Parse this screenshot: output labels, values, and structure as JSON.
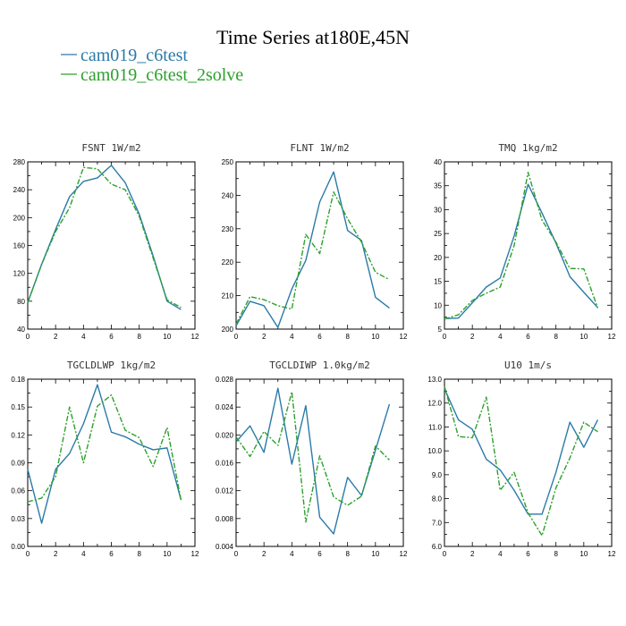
{
  "colors": {
    "series1": "#2a7aa8",
    "series2": "#2ca02c",
    "axis": "#000000"
  },
  "chart_data": {
    "title": "Time Series at180E,45N",
    "legend": {
      "placement": "top-left",
      "entries": [
        "cam019_c6test",
        "cam019_c6test_2solve"
      ]
    },
    "panels": [
      {
        "type": "line",
        "title": "FSNT   1W/m2",
        "x": [
          0,
          1,
          2,
          3,
          4,
          5,
          6,
          7,
          8,
          9,
          10,
          11
        ],
        "xlim": [
          0,
          12
        ],
        "xticks": [
          "0",
          "2",
          "4",
          "6",
          "8",
          "10",
          "12"
        ],
        "xtick_values": [
          0,
          2,
          4,
          6,
          8,
          10,
          12
        ],
        "ylim": [
          40,
          280
        ],
        "yticks": [
          "40",
          "80",
          "120",
          "160",
          "200",
          "240",
          "280"
        ],
        "ytick_values": [
          40,
          80,
          120,
          160,
          200,
          240,
          280
        ],
        "series": [
          {
            "name": "cam019_c6test",
            "values": [
              78,
              133,
              183,
              230,
              252,
              257,
              275,
              250,
              205,
              145,
              80,
              68
            ]
          },
          {
            "name": "cam019_c6test_2solve",
            "values": [
              78,
              133,
              180,
              214,
              272,
              270,
              248,
              240,
              202,
              142,
              82,
              71
            ]
          }
        ]
      },
      {
        "type": "line",
        "title": "FLNT   1W/m2",
        "x": [
          0,
          1,
          2,
          3,
          4,
          5,
          6,
          7,
          8,
          9,
          10,
          11
        ],
        "xlim": [
          0,
          12
        ],
        "xticks": [
          "0",
          "2",
          "4",
          "6",
          "8",
          "10",
          "12"
        ],
        "xtick_values": [
          0,
          2,
          4,
          6,
          8,
          10,
          12
        ],
        "ylim": [
          200,
          250
        ],
        "yticks": [
          "200",
          "210",
          "220",
          "230",
          "240",
          "250"
        ],
        "ytick_values": [
          200,
          210,
          220,
          230,
          240,
          250
        ],
        "series": [
          {
            "name": "cam019_c6test",
            "values": [
              201,
              208.3,
              207,
              200.5,
              212,
              220.5,
              238,
              247,
              229.5,
              226.5,
              209.5,
              206.3
            ]
          },
          {
            "name": "cam019_c6test_2solve",
            "values": [
              201.5,
              209.7,
              208.8,
              207,
              206,
              228.3,
              222.6,
              241,
              233,
              226,
              217,
              214.8
            ]
          }
        ]
      },
      {
        "type": "line",
        "title": "TMQ   1kg/m2",
        "x": [
          0,
          1,
          2,
          3,
          4,
          5,
          6,
          7,
          8,
          9,
          10,
          11
        ],
        "xlim": [
          0,
          12
        ],
        "xticks": [
          "0",
          "2",
          "4",
          "6",
          "8",
          "10",
          "12"
        ],
        "xtick_values": [
          0,
          2,
          4,
          6,
          8,
          10,
          12
        ],
        "ylim": [
          5,
          40
        ],
        "yticks": [
          "5",
          "10",
          "15",
          "20",
          "25",
          "30",
          "35",
          "40"
        ],
        "ytick_values": [
          5,
          10,
          15,
          20,
          25,
          30,
          35,
          40
        ],
        "series": [
          {
            "name": "cam019_c6test",
            "values": [
              7.2,
              7.3,
              10.5,
              13.8,
              15.7,
              24.5,
              35.3,
              29.3,
              23,
              16,
              12.7,
              9.5
            ]
          },
          {
            "name": "cam019_c6test_2solve",
            "values": [
              7.1,
              8,
              11,
              12.5,
              13.8,
              22.5,
              37.8,
              27.8,
              23.2,
              17.7,
              17.6,
              9.4
            ]
          }
        ]
      },
      {
        "type": "line",
        "title": "TGCLDLWP   1kg/m2",
        "x": [
          0,
          1,
          2,
          3,
          4,
          5,
          6,
          7,
          8,
          9,
          10,
          11
        ],
        "xlim": [
          0,
          12
        ],
        "xticks": [
          "0",
          "2",
          "4",
          "6",
          "8",
          "10",
          "12"
        ],
        "xtick_values": [
          0,
          2,
          4,
          6,
          8,
          10,
          12
        ],
        "ylim": [
          0,
          0.18
        ],
        "yticks": [
          "0.00",
          "0.03",
          "0.06",
          "0.09",
          "0.12",
          "0.15",
          "0.18"
        ],
        "ytick_values": [
          0,
          0.03,
          0.06,
          0.09,
          0.12,
          0.15,
          0.18
        ],
        "series": [
          {
            "name": "cam019_c6test",
            "values": [
              0.083,
              0.025,
              0.083,
              0.1,
              0.132,
              0.174,
              0.123,
              0.118,
              0.11,
              0.104,
              0.106,
              0.05
            ]
          },
          {
            "name": "cam019_c6test_2solve",
            "values": [
              0.048,
              0.052,
              0.075,
              0.15,
              0.09,
              0.151,
              0.163,
              0.125,
              0.117,
              0.086,
              0.128,
              0.05
            ]
          }
        ]
      },
      {
        "type": "line",
        "title": "TGCLDIWP   1.0kg/m2",
        "x": [
          0,
          1,
          2,
          3,
          4,
          5,
          6,
          7,
          8,
          9,
          10,
          11
        ],
        "xlim": [
          0,
          12
        ],
        "xticks": [
          "0",
          "2",
          "4",
          "6",
          "8",
          "10",
          "12"
        ],
        "xtick_values": [
          0,
          2,
          4,
          6,
          8,
          10,
          12
        ],
        "ylim": [
          0.004,
          0.028
        ],
        "yticks": [
          "0.004",
          "0.008",
          "0.012",
          "0.016",
          "0.020",
          "0.024",
          "0.028"
        ],
        "ytick_values": [
          0.004,
          0.008,
          0.012,
          0.016,
          0.02,
          0.024,
          0.028
        ],
        "series": [
          {
            "name": "cam019_c6test",
            "values": [
              0.019,
              0.0213,
              0.0175,
              0.0267,
              0.0158,
              0.0242,
              0.0082,
              0.0058,
              0.0139,
              0.0113,
              0.0178,
              0.0244
            ]
          },
          {
            "name": "cam019_c6test_2solve",
            "values": [
              0.0197,
              0.0169,
              0.0205,
              0.0185,
              0.0262,
              0.0075,
              0.017,
              0.0111,
              0.0099,
              0.0112,
              0.0184,
              0.0164
            ]
          }
        ]
      },
      {
        "type": "line",
        "title": "U10   1m/s",
        "x": [
          0,
          1,
          2,
          3,
          4,
          5,
          6,
          7,
          8,
          9,
          10,
          11
        ],
        "xlim": [
          0,
          12
        ],
        "xticks": [
          "0",
          "2",
          "4",
          "6",
          "8",
          "10",
          "12"
        ],
        "xtick_values": [
          0,
          2,
          4,
          6,
          8,
          10,
          12
        ],
        "ylim": [
          6,
          13
        ],
        "yticks": [
          "6.0",
          "7.0",
          "8.0",
          "9.0",
          "10.0",
          "11.0",
          "12.0",
          "13.0"
        ],
        "ytick_values": [
          6,
          7,
          8,
          9,
          10,
          11,
          12,
          13
        ],
        "series": [
          {
            "name": "cam019_c6test",
            "values": [
              12.6,
              11.3,
              10.9,
              9.65,
              9.2,
              8.35,
              7.35,
              7.35,
              9.1,
              11.2,
              10.15,
              11.3
            ]
          },
          {
            "name": "cam019_c6test_2solve",
            "values": [
              12.7,
              10.6,
              10.55,
              12.25,
              8.35,
              9.1,
              7.4,
              6.45,
              8.45,
              9.7,
              11.2,
              10.8
            ]
          }
        ]
      }
    ]
  }
}
